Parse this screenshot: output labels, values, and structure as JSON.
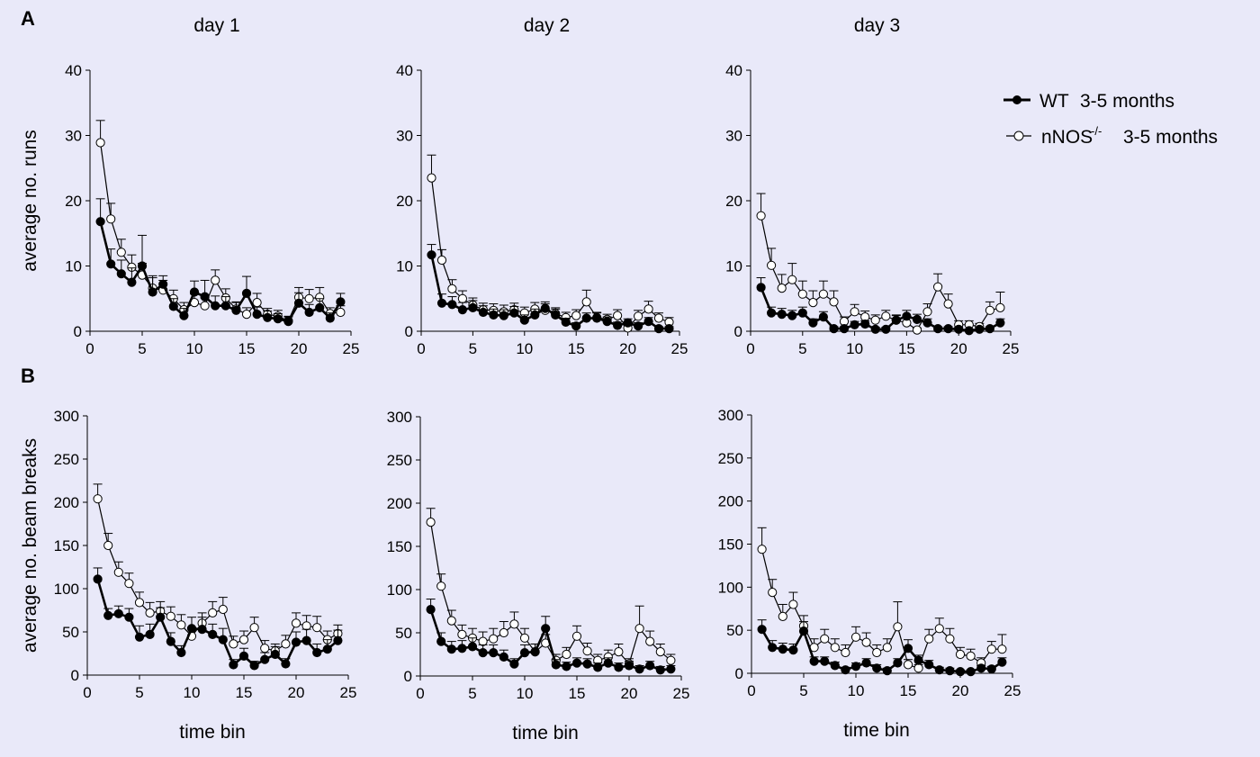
{
  "panel_labels": [
    "A",
    "B"
  ],
  "legend": {
    "wt_label": "WT",
    "wt_age": "3-5 months",
    "ko_label": "nNOS",
    "ko_sup": "-/-",
    "ko_age": "3-5 months"
  },
  "colors": {
    "background": "#e9e9f9",
    "wt": "#000000",
    "ko_fill": "#ffffff",
    "ink": "#000000"
  },
  "chart_data": [
    {
      "type": "line",
      "panel": "A",
      "title": "day 1",
      "xlabel": "",
      "ylabel": "average no. runs",
      "xlim": [
        0,
        25
      ],
      "ylim": [
        0,
        40
      ],
      "xticks": [
        0,
        5,
        10,
        15,
        20,
        25
      ],
      "yticks": [
        0,
        10,
        20,
        30,
        40
      ],
      "x": [
        1,
        2,
        3,
        4,
        5,
        6,
        7,
        8,
        9,
        10,
        11,
        12,
        13,
        14,
        15,
        16,
        17,
        18,
        19,
        20,
        21,
        22,
        23,
        24
      ],
      "series": [
        {
          "name": "WT 3-5 months",
          "values": [
            16.8,
            10.3,
            8.8,
            7.5,
            10.0,
            6.0,
            7.2,
            3.8,
            2.4,
            6.0,
            5.3,
            3.9,
            3.9,
            3.2,
            5.8,
            2.6,
            2.1,
            1.9,
            1.5,
            4.3,
            2.9,
            3.6,
            2.0,
            4.5
          ],
          "errors": [
            3.5,
            2.3,
            2.1,
            2.2,
            4.7,
            2.5,
            1.3,
            1.2,
            1.1,
            1.7,
            2.5,
            1.5,
            1.4,
            1.2,
            2.6,
            1.1,
            1.0,
            0.8,
            0.7,
            1.6,
            1.2,
            1.4,
            0.8,
            1.3
          ]
        },
        {
          "name": "nNOS-/- 3-5 months",
          "values": [
            28.9,
            17.2,
            12.1,
            9.8,
            8.6,
            6.6,
            6.3,
            5.0,
            3.3,
            4.4,
            3.9,
            7.8,
            5.1,
            3.4,
            2.6,
            4.4,
            2.6,
            2.3,
            1.6,
            5.2,
            5.0,
            5.2,
            2.7,
            2.9
          ],
          "errors": [
            3.4,
            2.4,
            2.0,
            1.9,
            1.8,
            1.6,
            1.5,
            1.3,
            1.1,
            1.3,
            1.2,
            1.6,
            1.4,
            1.1,
            1.0,
            1.4,
            0.9,
            0.9,
            0.7,
            1.5,
            1.4,
            1.5,
            0.9,
            1.0
          ]
        }
      ]
    },
    {
      "type": "line",
      "panel": "A",
      "title": "day 2",
      "xlabel": "",
      "ylabel": "",
      "xlim": [
        0,
        25
      ],
      "ylim": [
        0,
        40
      ],
      "xticks": [
        0,
        5,
        10,
        15,
        20,
        25
      ],
      "yticks": [
        0,
        10,
        20,
        30,
        40
      ],
      "x": [
        1,
        2,
        3,
        4,
        5,
        6,
        7,
        8,
        9,
        10,
        11,
        12,
        13,
        14,
        15,
        16,
        17,
        18,
        19,
        20,
        21,
        22,
        23,
        24
      ],
      "series": [
        {
          "name": "WT 3-5 months",
          "values": [
            11.7,
            4.3,
            4.1,
            3.3,
            3.6,
            2.9,
            2.5,
            2.4,
            2.8,
            1.7,
            2.5,
            3.5,
            2.5,
            1.4,
            0.8,
            2.0,
            2.0,
            1.5,
            0.9,
            1.3,
            0.8,
            1.5,
            0.4,
            0.4
          ],
          "errors": [
            1.6,
            1.4,
            1.2,
            1.1,
            1.1,
            1.0,
            0.9,
            0.9,
            1.0,
            0.8,
            0.9,
            1.0,
            0.9,
            0.6,
            0.5,
            0.8,
            0.8,
            0.7,
            0.5,
            0.6,
            0.5,
            0.6,
            0.3,
            0.3
          ]
        },
        {
          "name": "nNOS-/- 3-5 months",
          "values": [
            23.5,
            10.9,
            6.5,
            5.0,
            4.0,
            3.3,
            3.2,
            3.0,
            3.3,
            2.8,
            3.4,
            3.2,
            2.7,
            2.1,
            2.4,
            4.5,
            2.1,
            1.8,
            2.4,
            0.5,
            2.3,
            3.4,
            2.0,
            1.4
          ],
          "errors": [
            3.5,
            1.6,
            1.4,
            1.2,
            1.1,
            1.0,
            1.0,
            1.0,
            1.0,
            0.9,
            1.0,
            1.0,
            0.9,
            0.8,
            0.9,
            1.8,
            0.8,
            0.8,
            0.9,
            0.4,
            0.9,
            1.2,
            0.8,
            0.7
          ]
        }
      ]
    },
    {
      "type": "line",
      "panel": "A",
      "title": "day 3",
      "xlabel": "",
      "ylabel": "",
      "xlim": [
        0,
        25
      ],
      "ylim": [
        0,
        40
      ],
      "xticks": [
        0,
        5,
        10,
        15,
        20,
        25
      ],
      "yticks": [
        0,
        10,
        20,
        30,
        40
      ],
      "x": [
        1,
        2,
        3,
        4,
        5,
        6,
        7,
        8,
        9,
        10,
        11,
        12,
        13,
        14,
        15,
        16,
        17,
        18,
        19,
        20,
        21,
        22,
        23,
        24
      ],
      "series": [
        {
          "name": "WT 3-5 months",
          "values": [
            6.7,
            2.8,
            2.6,
            2.4,
            2.8,
            1.3,
            2.2,
            0.4,
            0.4,
            1.0,
            1.1,
            0.3,
            0.3,
            1.7,
            2.3,
            1.8,
            1.3,
            0.4,
            0.4,
            0.3,
            0.1,
            0.3,
            0.4,
            1.3
          ],
          "errors": [
            1.5,
            0.9,
            0.9,
            0.8,
            0.9,
            0.6,
            0.8,
            0.3,
            0.3,
            0.5,
            0.5,
            0.3,
            0.3,
            0.7,
            0.9,
            0.8,
            0.6,
            0.3,
            0.3,
            0.3,
            0.2,
            0.3,
            0.3,
            0.6
          ]
        },
        {
          "name": "nNOS-/- 3-5 months",
          "values": [
            17.7,
            10.1,
            6.6,
            7.9,
            5.7,
            4.4,
            5.7,
            4.5,
            1.5,
            3.0,
            2.2,
            1.7,
            2.3,
            1.7,
            1.3,
            0.2,
            3.0,
            6.8,
            4.2,
            1.0,
            1.0,
            0.7,
            3.2,
            3.6
          ],
          "errors": [
            3.4,
            2.6,
            2.1,
            2.5,
            2.0,
            1.8,
            2.0,
            1.7,
            0.7,
            1.1,
            0.9,
            0.8,
            0.9,
            0.8,
            0.7,
            0.3,
            1.2,
            2.0,
            1.5,
            0.6,
            0.6,
            0.5,
            1.3,
            2.4
          ]
        }
      ]
    },
    {
      "type": "line",
      "panel": "B",
      "title": "",
      "xlabel": "time bin",
      "ylabel": "average no. beam breaks",
      "xlim": [
        0,
        25
      ],
      "ylim": [
        0,
        300
      ],
      "xticks": [
        0,
        5,
        10,
        15,
        20,
        25
      ],
      "yticks": [
        0,
        50,
        100,
        150,
        200,
        250,
        300
      ],
      "x": [
        1,
        2,
        3,
        4,
        5,
        6,
        7,
        8,
        9,
        10,
        11,
        12,
        13,
        14,
        15,
        16,
        17,
        18,
        19,
        20,
        21,
        22,
        23,
        24
      ],
      "series": [
        {
          "name": "WT 3-5 months",
          "values": [
            111,
            69,
            71,
            67,
            44,
            47,
            67,
            39,
            26,
            54,
            53,
            47,
            41,
            12,
            22,
            11,
            18,
            24,
            13,
            38,
            40,
            26,
            30,
            40
          ],
          "errors": [
            13,
            8,
            9,
            10,
            13,
            12,
            11,
            10,
            8,
            13,
            14,
            12,
            13,
            6,
            9,
            5,
            8,
            9,
            6,
            12,
            13,
            10,
            11,
            12
          ]
        },
        {
          "name": "nNOS-/- 3-5 months",
          "values": [
            204,
            150,
            119,
            106,
            84,
            72,
            74,
            68,
            58,
            45,
            60,
            72,
            76,
            36,
            41,
            55,
            31,
            28,
            36,
            60,
            57,
            55,
            41,
            48
          ],
          "errors": [
            17,
            14,
            12,
            12,
            12,
            12,
            11,
            11,
            12,
            10,
            12,
            13,
            14,
            9,
            10,
            12,
            9,
            8,
            10,
            12,
            12,
            13,
            10,
            10
          ]
        }
      ]
    },
    {
      "type": "line",
      "panel": "B",
      "title": "",
      "xlabel": "time bin",
      "ylabel": "",
      "xlim": [
        0,
        25
      ],
      "ylim": [
        0,
        300
      ],
      "xticks": [
        0,
        5,
        10,
        15,
        20,
        25
      ],
      "yticks": [
        0,
        50,
        100,
        150,
        200,
        250,
        300
      ],
      "x": [
        1,
        2,
        3,
        4,
        5,
        6,
        7,
        8,
        9,
        10,
        11,
        12,
        13,
        14,
        15,
        16,
        17,
        18,
        19,
        20,
        21,
        22,
        23,
        24
      ],
      "series": [
        {
          "name": "WT 3-5 months",
          "values": [
            77,
            40,
            31,
            32,
            34,
            27,
            27,
            22,
            14,
            27,
            28,
            55,
            13,
            11,
            15,
            14,
            10,
            15,
            10,
            12,
            8,
            12,
            7,
            8
          ],
          "errors": [
            12,
            10,
            9,
            9,
            10,
            9,
            9,
            8,
            6,
            9,
            9,
            14,
            6,
            5,
            6,
            6,
            5,
            6,
            5,
            5,
            4,
            5,
            4,
            4
          ]
        },
        {
          "name": "nNOS-/- 3-5 months",
          "values": [
            178,
            104,
            64,
            48,
            44,
            40,
            43,
            50,
            60,
            44,
            28,
            38,
            18,
            25,
            46,
            29,
            18,
            22,
            28,
            14,
            55,
            40,
            28,
            18
          ],
          "errors": [
            16,
            14,
            12,
            11,
            11,
            11,
            12,
            13,
            14,
            11,
            9,
            10,
            7,
            8,
            12,
            9,
            7,
            8,
            9,
            6,
            26,
            12,
            9,
            7
          ]
        }
      ]
    },
    {
      "type": "line",
      "panel": "B",
      "title": "",
      "xlabel": "time bin",
      "ylabel": "",
      "xlim": [
        0,
        25
      ],
      "ylim": [
        0,
        300
      ],
      "xticks": [
        0,
        5,
        10,
        15,
        20,
        25
      ],
      "yticks": [
        0,
        50,
        100,
        150,
        200,
        250,
        300
      ],
      "x": [
        1,
        2,
        3,
        4,
        5,
        6,
        7,
        8,
        9,
        10,
        11,
        12,
        13,
        14,
        15,
        16,
        17,
        18,
        19,
        20,
        21,
        22,
        23,
        24
      ],
      "series": [
        {
          "name": "WT 3-5 months",
          "values": [
            51,
            30,
            28,
            27,
            49,
            14,
            14,
            9,
            4,
            8,
            12,
            6,
            3,
            12,
            29,
            15,
            10,
            4,
            3,
            2,
            2,
            6,
            5,
            13
          ],
          "errors": [
            11,
            8,
            7,
            7,
            11,
            5,
            5,
            4,
            3,
            4,
            5,
            4,
            3,
            5,
            10,
            6,
            5,
            3,
            3,
            2,
            2,
            3,
            3,
            5
          ]
        },
        {
          "name": "nNOS-/- 3-5 months",
          "values": [
            144,
            94,
            66,
            80,
            55,
            30,
            40,
            30,
            24,
            42,
            36,
            24,
            30,
            54,
            10,
            6,
            40,
            52,
            40,
            22,
            20,
            12,
            28,
            28
          ],
          "errors": [
            25,
            15,
            14,
            14,
            12,
            10,
            11,
            10,
            9,
            12,
            11,
            9,
            10,
            29,
            6,
            4,
            11,
            12,
            12,
            8,
            8,
            6,
            9,
            17
          ]
        }
      ]
    }
  ]
}
